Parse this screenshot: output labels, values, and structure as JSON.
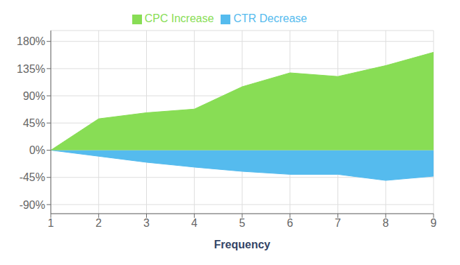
{
  "chart_data": {
    "type": "area",
    "x": [
      1,
      2,
      3,
      4,
      5,
      6,
      7,
      8,
      9
    ],
    "series": [
      {
        "name": "CTR Decrease",
        "color": "#55BBEE",
        "values": [
          0,
          -10,
          -20,
          -28,
          -35,
          -40,
          -40,
          -50,
          -43
        ]
      },
      {
        "name": "CPC Increase",
        "color": "#88DD55",
        "values": [
          0,
          52,
          62,
          68,
          105,
          128,
          122,
          140,
          162
        ]
      }
    ],
    "xlabel": "Frequency",
    "xlim": [
      1,
      9
    ],
    "xticks": [
      1,
      2,
      3,
      4,
      5,
      6,
      7,
      8,
      9
    ],
    "ylim": [
      -105,
      198
    ],
    "yticks": [
      {
        "value": -90,
        "label": "-90%"
      },
      {
        "value": -45,
        "label": "-45%"
      },
      {
        "value": 0,
        "label": "0%"
      },
      {
        "value": 45,
        "label": "45%"
      },
      {
        "value": 90,
        "label": "90%"
      },
      {
        "value": 135,
        "label": "135%"
      },
      {
        "value": 180,
        "label": "180%"
      }
    ],
    "grid": true,
    "legend": "top"
  }
}
